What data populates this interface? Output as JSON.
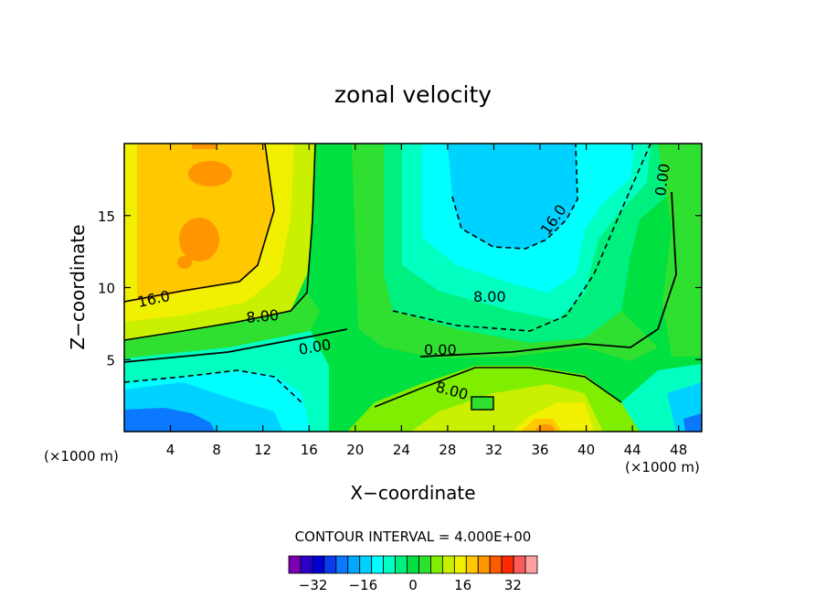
{
  "chart_data": {
    "type": "heatmap",
    "title": "zonal velocity",
    "xlabel": "X−coordinate",
    "ylabel": "Z−coordinate",
    "x_unit_label": "(×1000 m)",
    "y_unit_label": "(×1000 m)",
    "xlim": [
      0,
      50
    ],
    "ylim": [
      0,
      20
    ],
    "x_ticks": [
      "4",
      "8",
      "12",
      "16",
      "20",
      "24",
      "28",
      "32",
      "36",
      "40",
      "44",
      "48"
    ],
    "y_ticks": [
      "5",
      "10",
      "15"
    ],
    "contour_interval_text": "CONTOUR INTERVAL = 4.000E+00",
    "contour_labels": [
      "16.0",
      "8.00",
      "0.00",
      "0.00",
      "8.00",
      "16.0",
      "0.00",
      "8.00"
    ],
    "colorbar": {
      "levels": [
        -36,
        -32,
        -28,
        -24,
        -20,
        -16,
        -12,
        -8,
        -4,
        0,
        4,
        8,
        12,
        16,
        20,
        24,
        28,
        32,
        36
      ],
      "colors": [
        "#7a00b0",
        "#2a00c8",
        "#0000d2",
        "#0a3cf0",
        "#0a78ff",
        "#00a8ff",
        "#00d2ff",
        "#00ffff",
        "#00ffc0",
        "#00f080",
        "#00e040",
        "#30e030",
        "#80ee00",
        "#c8f000",
        "#f0f000",
        "#ffc800",
        "#ff9600",
        "#ff5a00",
        "#ff2a00",
        "#ff5a5a",
        "#ffa0a0"
      ],
      "tick_labels": [
        "−32",
        "−16",
        "0",
        "16",
        "32"
      ],
      "tick_values": [
        -32,
        -16,
        0,
        16,
        32
      ]
    },
    "grid": false,
    "legend": "colorbar-bottom"
  }
}
